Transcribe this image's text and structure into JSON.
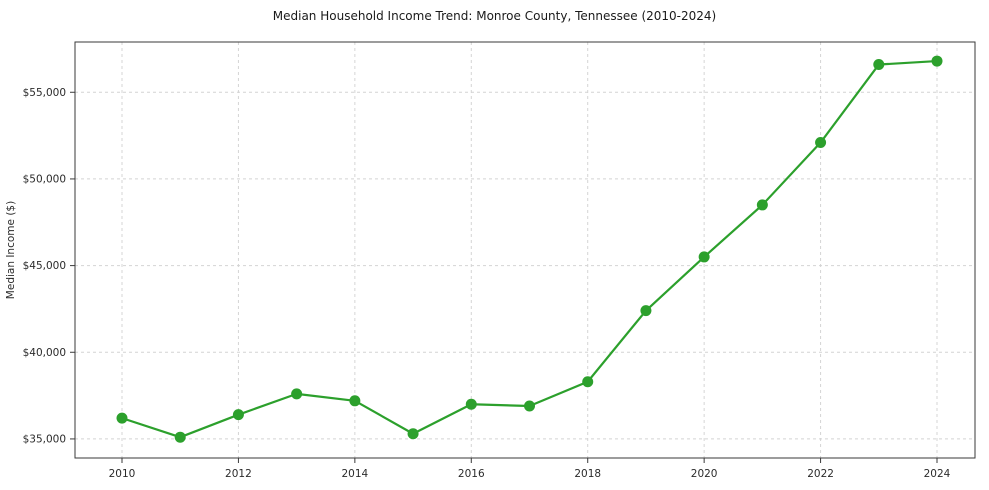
{
  "chart_data": {
    "type": "line",
    "title": "Median Household Income Trend: Monroe County, Tennessee (2010-2024)",
    "xlabel": "",
    "ylabel": "Median Income ($)",
    "x": [
      2010,
      2011,
      2012,
      2013,
      2014,
      2015,
      2016,
      2017,
      2018,
      2019,
      2020,
      2021,
      2022,
      2023,
      2024
    ],
    "series": [
      {
        "name": "Median Household Income",
        "values": [
          36200,
          35100,
          36400,
          37600,
          37200,
          35300,
          37000,
          36900,
          38300,
          42400,
          45500,
          48500,
          52100,
          56600,
          56800
        ],
        "color": "#2ca02c"
      }
    ],
    "ylim": [
      33900,
      57900
    ],
    "yticks": [
      35000,
      40000,
      45000,
      50000,
      55000
    ],
    "ytick_labels": [
      "$35,000",
      "$40,000",
      "$45,000",
      "$50,000",
      "$55,000"
    ],
    "xticks": [
      2010,
      2012,
      2014,
      2016,
      2018,
      2020,
      2022,
      2024
    ],
    "grid": true,
    "grid_style": "dashed",
    "legend": "none",
    "marker": "circle",
    "line_width": 2.2,
    "marker_radius": 5.5
  }
}
